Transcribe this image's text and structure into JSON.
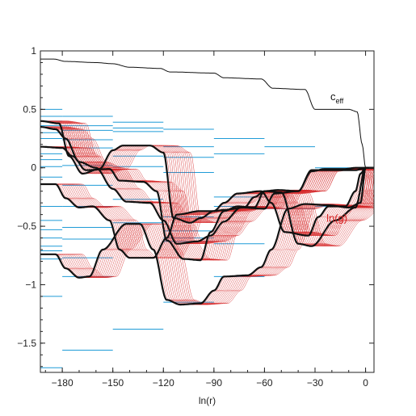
{
  "chart_data": {
    "type": "line",
    "title": "",
    "xlabel": "ln(r)",
    "ylabel": "",
    "xlim": [
      -193,
      5
    ],
    "ylim": [
      -1.75,
      1.0
    ],
    "grid": false,
    "x_ticks": [
      -180,
      -150,
      -120,
      -90,
      -60,
      -30,
      0
    ],
    "x_tick_labels": [
      "−180",
      "−150",
      "−120",
      "−90",
      "−60",
      "−30",
      "0"
    ],
    "y_ticks": [
      1,
      0.5,
      0,
      -0.5,
      -1,
      -1.5
    ],
    "y_tick_labels": [
      "1",
      "0.5",
      "0",
      "−0.5",
      "−1",
      "−1.5"
    ],
    "colors": {
      "c_eff": "#111111",
      "lng": "#d62728",
      "bold": "#111111",
      "levels": "#1f9bd7"
    },
    "annotations": [
      {
        "name": "c-eff-label",
        "text": "c",
        "sub": "eff",
        "x": -17,
        "y": 0.58,
        "color": "#111111"
      },
      {
        "name": "ln-g-label",
        "text": "ln(g)",
        "x": -17,
        "y": -0.46,
        "color": "#d62728"
      }
    ],
    "c_eff": {
      "x": [
        -193,
        -185,
        -178,
        -160,
        -150,
        -140,
        -122,
        -116,
        -90,
        -84,
        -62,
        -55,
        -36,
        -30,
        -10,
        -5,
        -2,
        0,
        5
      ],
      "y": [
        0.93,
        0.93,
        0.91,
        0.9,
        0.89,
        0.86,
        0.85,
        0.82,
        0.81,
        0.77,
        0.76,
        0.68,
        0.67,
        0.5,
        0.5,
        0.48,
        0.2,
        0.0,
        0.0
      ]
    },
    "bold_curves": [
      {
        "x": [
          -193,
          -182,
          -176,
          -168,
          -158,
          -150,
          -144,
          -128,
          -120,
          -114,
          -104,
          -98,
          -90,
          -84,
          -76,
          -62,
          -56,
          -48,
          -34,
          -28,
          -22,
          -12,
          -6,
          -3,
          0,
          5
        ],
        "y": [
          0.4,
          0.38,
          0.1,
          -0.05,
          -0.01,
          0.15,
          0.19,
          0.19,
          0.13,
          -0.43,
          -0.47,
          -0.43,
          -0.37,
          -0.3,
          -0.22,
          -0.2,
          -0.3,
          -0.55,
          -0.58,
          -0.42,
          -0.33,
          -0.33,
          -0.2,
          -0.05,
          0,
          0
        ]
      },
      {
        "x": [
          -193,
          -184,
          -178,
          -170,
          -160,
          -150,
          -142,
          -128,
          -120,
          -112,
          -100,
          -92,
          -84,
          -74,
          -60,
          -54,
          -40,
          -32,
          -20,
          -6,
          -2,
          0,
          5
        ],
        "y": [
          0.35,
          0.33,
          0.25,
          0.05,
          0.0,
          -0.18,
          -0.29,
          -0.3,
          -0.45,
          -0.65,
          -0.63,
          -0.58,
          -0.46,
          -0.34,
          -0.35,
          -0.22,
          -0.2,
          -0.02,
          -0.02,
          -0.02,
          -0.01,
          0,
          0
        ]
      },
      {
        "x": [
          -193,
          -180,
          -174,
          -166,
          -152,
          -146,
          -132,
          -124,
          -118,
          -108,
          -98,
          -92,
          -84,
          -76,
          -66,
          -60,
          -52,
          -40,
          -32,
          -24,
          -12,
          -6,
          0,
          5
        ],
        "y": [
          0.18,
          0.17,
          0.1,
          -0.02,
          -0.01,
          -0.11,
          -0.12,
          -0.2,
          -0.62,
          -0.78,
          -0.79,
          -0.55,
          -0.37,
          -0.33,
          -0.34,
          -0.2,
          -0.19,
          -0.2,
          -0.03,
          -0.01,
          -0.01,
          0.0,
          0,
          0
        ]
      },
      {
        "x": [
          -193,
          -184,
          -178,
          -170,
          -162,
          -152,
          -146,
          -140,
          -126,
          -118,
          -112,
          -98,
          -90,
          -84,
          -72,
          -66,
          -60,
          -50,
          -40,
          -32,
          -18,
          -6,
          0,
          5
        ],
        "y": [
          -0.14,
          -0.14,
          -0.26,
          -0.34,
          -0.33,
          -0.45,
          -0.7,
          -0.77,
          -0.77,
          -0.6,
          -0.4,
          -0.37,
          -0.37,
          -0.36,
          -0.34,
          -0.25,
          -0.2,
          -0.21,
          -0.65,
          -0.67,
          -0.45,
          -0.34,
          0,
          0
        ]
      },
      {
        "x": [
          -193,
          -184,
          -178,
          -170,
          -164,
          -156,
          -142,
          -134,
          -126,
          -118,
          -110,
          -98,
          -90,
          -84,
          -70,
          -62,
          -56,
          -46,
          -36,
          -22,
          -10,
          -3,
          0,
          5
        ],
        "y": [
          -0.74,
          -0.74,
          -0.86,
          -0.94,
          -0.93,
          -0.7,
          -0.48,
          -0.48,
          -0.7,
          -1.13,
          -1.17,
          -1.16,
          -1.05,
          -0.93,
          -0.92,
          -0.85,
          -0.7,
          -0.35,
          -0.31,
          -0.32,
          -0.34,
          -0.3,
          0,
          0
        ]
      }
    ],
    "level_segments": [
      {
        "x0": -193,
        "x1": -180,
        "y": 0.5
      },
      {
        "x0": -193,
        "x1": -180,
        "y": 0.44
      },
      {
        "x0": -193,
        "x1": -180,
        "y": 0.4
      },
      {
        "x0": -193,
        "x1": -180,
        "y": 0.36
      },
      {
        "x0": -193,
        "x1": -180,
        "y": 0.3
      },
      {
        "x0": -193,
        "x1": -180,
        "y": 0.25
      },
      {
        "x0": -193,
        "x1": -180,
        "y": 0.12
      },
      {
        "x0": -193,
        "x1": -180,
        "y": 0.07
      },
      {
        "x0": -193,
        "x1": -180,
        "y": 0.01
      },
      {
        "x0": -193,
        "x1": -180,
        "y": -0.08
      },
      {
        "x0": -193,
        "x1": -180,
        "y": -0.14
      },
      {
        "x0": -193,
        "x1": -180,
        "y": -0.33
      },
      {
        "x0": -193,
        "x1": -180,
        "y": -0.45
      },
      {
        "x0": -193,
        "x1": -180,
        "y": -0.53
      },
      {
        "x0": -193,
        "x1": -180,
        "y": -0.6
      },
      {
        "x0": -193,
        "x1": -180,
        "y": -0.67
      },
      {
        "x0": -193,
        "x1": -180,
        "y": -0.71
      },
      {
        "x0": -193,
        "x1": -180,
        "y": -0.78
      },
      {
        "x0": -193,
        "x1": -180,
        "y": -1.1
      },
      {
        "x0": -193,
        "x1": -180,
        "y": -1.71
      },
      {
        "x0": -180,
        "x1": -150,
        "y": 0.44
      },
      {
        "x0": -180,
        "x1": -150,
        "y": 0.36
      },
      {
        "x0": -180,
        "x1": -150,
        "y": 0.32
      },
      {
        "x0": -180,
        "x1": -150,
        "y": 0.24
      },
      {
        "x0": -180,
        "x1": -150,
        "y": 0.17
      },
      {
        "x0": -180,
        "x1": -150,
        "y": 0.02
      },
      {
        "x0": -180,
        "x1": -150,
        "y": -0.15
      },
      {
        "x0": -180,
        "x1": -150,
        "y": -0.33
      },
      {
        "x0": -180,
        "x1": -150,
        "y": -0.51
      },
      {
        "x0": -180,
        "x1": -150,
        "y": -0.61
      },
      {
        "x0": -180,
        "x1": -150,
        "y": -0.77
      },
      {
        "x0": -180,
        "x1": -150,
        "y": -0.93
      },
      {
        "x0": -180,
        "x1": -150,
        "y": -1.56
      },
      {
        "x0": -150,
        "x1": -120,
        "y": 0.39
      },
      {
        "x0": -150,
        "x1": -120,
        "y": 0.34
      },
      {
        "x0": -150,
        "x1": -120,
        "y": 0.31
      },
      {
        "x0": -150,
        "x1": -120,
        "y": 0.1
      },
      {
        "x0": -150,
        "x1": -120,
        "y": 0.01
      },
      {
        "x0": -150,
        "x1": -120,
        "y": -0.27
      },
      {
        "x0": -150,
        "x1": -120,
        "y": -0.47
      },
      {
        "x0": -150,
        "x1": -120,
        "y": -1.38
      },
      {
        "x0": -120,
        "x1": -90,
        "y": 0.33
      },
      {
        "x0": -120,
        "x1": -90,
        "y": 0.18
      },
      {
        "x0": -120,
        "x1": -90,
        "y": 0.09
      },
      {
        "x0": -120,
        "x1": -90,
        "y": -0.04
      },
      {
        "x0": -120,
        "x1": -90,
        "y": -0.42
      },
      {
        "x0": -120,
        "x1": -90,
        "y": -0.54
      },
      {
        "x0": -120,
        "x1": -90,
        "y": -0.6
      },
      {
        "x0": -120,
        "x1": -90,
        "y": -0.63
      },
      {
        "x0": -120,
        "x1": -90,
        "y": -1.15
      },
      {
        "x0": -90,
        "x1": -60,
        "y": 0.25
      },
      {
        "x0": -90,
        "x1": -60,
        "y": 0.12
      },
      {
        "x0": -90,
        "x1": -60,
        "y": -0.25
      },
      {
        "x0": -90,
        "x1": -60,
        "y": -0.33
      },
      {
        "x0": -90,
        "x1": -60,
        "y": -0.65
      },
      {
        "x0": -90,
        "x1": -60,
        "y": -0.93
      },
      {
        "x0": -60,
        "x1": -30,
        "y": 0.18
      },
      {
        "x0": -60,
        "x1": -30,
        "y": -0.2
      },
      {
        "x0": -60,
        "x1": -30,
        "y": -0.35
      },
      {
        "x0": -30,
        "x1": -5,
        "y": 0.0
      },
      {
        "x0": -30,
        "x1": -5,
        "y": -0.33
      }
    ]
  }
}
